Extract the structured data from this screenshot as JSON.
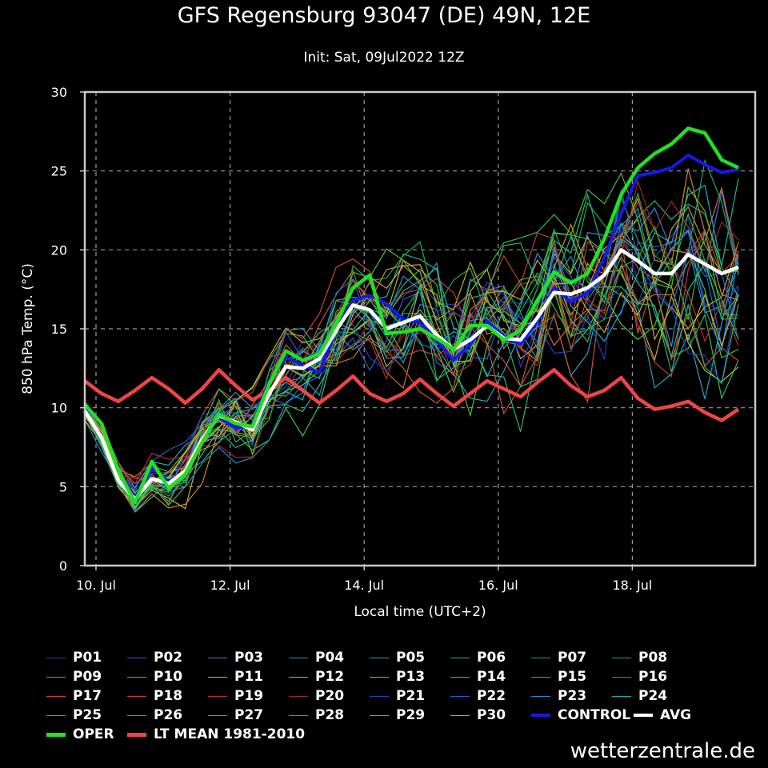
{
  "chart_data": {
    "type": "line",
    "title": "GFS Regensburg 93047 (DE) 49N, 12E",
    "subtitle": "Init: Sat, 09Jul2022 12Z",
    "xlabel": "Local time (UTC+2)",
    "ylabel": "850 hPa Temp. (°C)",
    "ylim": [
      0,
      30
    ],
    "yticks": [
      0,
      5,
      10,
      15,
      20,
      25,
      30
    ],
    "xlim_days": [
      9.833,
      19.833
    ],
    "xticks": [
      {
        "day": 10,
        "label": "10. Jul"
      },
      {
        "day": 12,
        "label": "12. Jul"
      },
      {
        "day": 14,
        "label": "14. Jul"
      },
      {
        "day": 16,
        "label": "16. Jul"
      },
      {
        "day": 18,
        "label": "18. Jul"
      }
    ],
    "grid": true,
    "x_start_day": 9.833,
    "x_step_days": 0.25,
    "highlight": {
      "OPER": [
        10.2,
        9.0,
        6.0,
        4.0,
        6.6,
        4.9,
        5.8,
        7.8,
        9.6,
        9.0,
        8.8,
        11.5,
        13.6,
        13.0,
        13.4,
        15.3,
        17.6,
        18.4,
        14.7,
        14.8,
        15.0,
        14.4,
        13.7,
        15.2,
        15.2,
        14.3,
        14.9,
        16.8,
        18.6,
        17.9,
        18.5,
        20.7,
        23.5,
        25.2,
        26.1,
        26.7,
        27.7,
        27.4,
        25.7,
        25.2
      ],
      "CONTROL": [
        10.1,
        9.0,
        6.0,
        4.3,
        6.2,
        5.3,
        6.0,
        8.0,
        9.4,
        8.7,
        8.9,
        11.7,
        13.2,
        12.7,
        12.2,
        15.0,
        16.8,
        17.1,
        16.6,
        15.6,
        15.4,
        14.3,
        13.0,
        14.0,
        15.5,
        14.5,
        14.0,
        15.5,
        17.6,
        16.7,
        17.3,
        19.5,
        22.3,
        24.7,
        24.9,
        25.2,
        26.0,
        25.4,
        24.9,
        25.1
      ],
      "AVG": [
        9.8,
        8.1,
        5.4,
        4.2,
        5.5,
        5.2,
        6.0,
        8.0,
        9.5,
        9.1,
        8.6,
        10.9,
        12.6,
        12.5,
        13.1,
        14.9,
        16.5,
        16.2,
        15.0,
        15.4,
        15.8,
        14.6,
        13.7,
        14.3,
        15.2,
        14.4,
        14.3,
        15.7,
        17.3,
        17.2,
        17.6,
        18.4,
        20.0,
        19.3,
        18.5,
        18.5,
        19.7,
        19.1,
        18.5,
        18.9
      ],
      "LT MEAN 1981-2010": [
        11.7,
        10.9,
        10.4,
        11.1,
        11.9,
        11.2,
        10.3,
        11.2,
        12.4,
        11.4,
        10.5,
        11.1,
        11.9,
        11.1,
        10.3,
        11.1,
        12.0,
        10.9,
        10.4,
        10.9,
        11.8,
        10.9,
        10.1,
        10.9,
        11.7,
        11.2,
        10.7,
        11.6,
        12.4,
        11.4,
        10.7,
        11.1,
        11.9,
        10.6,
        9.9,
        10.1,
        10.4,
        9.7,
        9.2,
        9.9
      ]
    },
    "ensemble_colors": [
      "#1c3fb8",
      "#2a5fd8",
      "#3a7ad8",
      "#2a8ec8",
      "#2aa2c0",
      "#2ab08a",
      "#20a860",
      "#20b040",
      "#30c040",
      "#40c840",
      "#b8b840",
      "#c8b030",
      "#c89830",
      "#d08830",
      "#d07030",
      "#c85830",
      "#c84830",
      "#c03c30",
      "#b83030",
      "#a02828",
      "#2040c0",
      "#2860d0",
      "#2a8ad0",
      "#20b0b8",
      "#20b888",
      "#30b070",
      "#40b050",
      "#3ab040",
      "#50c030",
      "#c0b030"
    ]
  },
  "legend": {
    "rows": [
      [
        "P01",
        "P02",
        "P03",
        "P04",
        "P05",
        "P06",
        "P07",
        "P08"
      ],
      [
        "P09",
        "P10",
        "P11",
        "P12",
        "P13",
        "P14",
        "P15",
        "P16"
      ],
      [
        "P17",
        "P18",
        "P19",
        "P20",
        "P21",
        "P22",
        "P23",
        "P24"
      ],
      [
        "P25",
        "P26",
        "P27",
        "P28",
        "P29",
        "P30"
      ]
    ],
    "control_label": "CONTROL",
    "avg_label": "AVG",
    "oper_label": "OPER",
    "ltmean_label": "LT MEAN 1981-2010",
    "colors": {
      "control": "#1818e8",
      "avg": "#ffffff",
      "oper": "#22e022",
      "ltmean": "#f04545"
    }
  },
  "watermark": "wetterzentrale.de"
}
